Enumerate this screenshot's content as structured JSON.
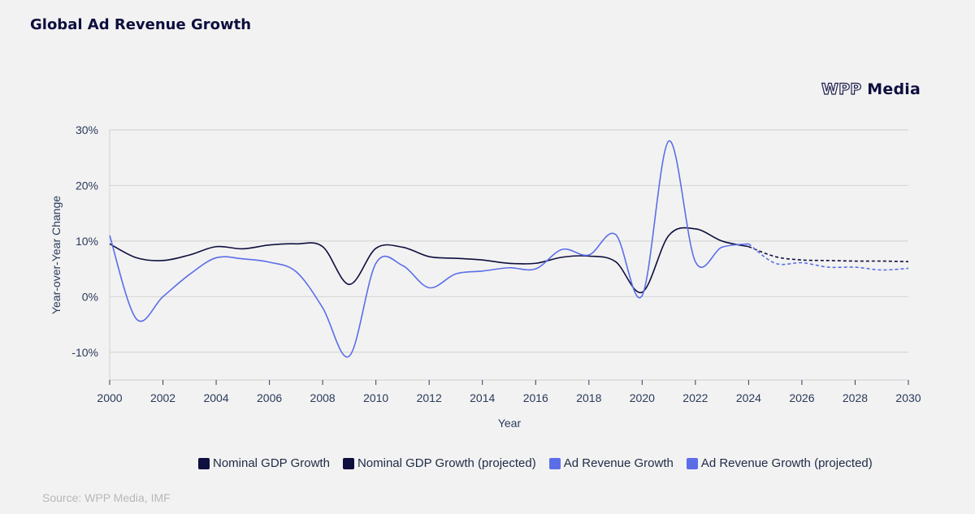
{
  "title": "Global Ad Revenue Growth",
  "logo": {
    "part1": "WPP",
    "part2": "Media"
  },
  "source": "Source: WPP Media, IMF",
  "colors": {
    "gdp": "#0e0e3f",
    "ad": "#5b6ee8",
    "grid": "#d6d6d6"
  },
  "chart_data": {
    "type": "line",
    "title": "Global Ad Revenue Growth",
    "xlabel": "Year",
    "ylabel": "Year-over-Year Change",
    "xlim": [
      2000,
      2030
    ],
    "ylim": [
      -15,
      30
    ],
    "x_ticks": [
      2000,
      2002,
      2004,
      2006,
      2008,
      2010,
      2012,
      2014,
      2016,
      2018,
      2020,
      2022,
      2024,
      2026,
      2028,
      2030
    ],
    "y_ticks": [
      -10,
      0,
      10,
      20,
      30
    ],
    "y_tick_labels": [
      "-10%",
      "0%",
      "10%",
      "20%",
      "30%"
    ],
    "grid": true,
    "legend_position": "bottom",
    "series": [
      {
        "name": "Nominal GDP Growth",
        "color": "#0e0e3f",
        "dashed": false,
        "x": [
          2000,
          2001,
          2002,
          2003,
          2004,
          2005,
          2006,
          2007,
          2008,
          2009,
          2010,
          2011,
          2012,
          2013,
          2014,
          2015,
          2016,
          2017,
          2018,
          2019,
          2020,
          2021,
          2022,
          2023,
          2024
        ],
        "y": [
          9.5,
          7.0,
          6.5,
          7.5,
          9.0,
          8.6,
          9.3,
          9.5,
          9.0,
          2.2,
          8.7,
          8.9,
          7.2,
          6.9,
          6.6,
          6.0,
          6.0,
          7.1,
          7.3,
          6.3,
          0.8,
          11.0,
          12.2,
          10.0,
          9.0
        ]
      },
      {
        "name": "Nominal GDP Growth (projected)",
        "color": "#0e0e3f",
        "dashed": true,
        "x": [
          2024,
          2025,
          2026,
          2027,
          2028,
          2029,
          2030
        ],
        "y": [
          9.0,
          7.2,
          6.6,
          6.5,
          6.4,
          6.4,
          6.3
        ]
      },
      {
        "name": "Ad Revenue Growth",
        "color": "#5b6ee8",
        "dashed": false,
        "x": [
          2000,
          2001,
          2002,
          2003,
          2004,
          2005,
          2006,
          2007,
          2008,
          2009,
          2010,
          2011,
          2012,
          2013,
          2014,
          2015,
          2016,
          2017,
          2018,
          2019,
          2020,
          2021,
          2022,
          2023,
          2024
        ],
        "y": [
          11.0,
          -4.0,
          0.0,
          4.0,
          7.0,
          6.8,
          6.2,
          4.5,
          -2.0,
          -10.7,
          6.0,
          5.6,
          1.6,
          4.1,
          4.6,
          5.2,
          5.0,
          8.5,
          7.5,
          11.2,
          0.2,
          28.0,
          6.3,
          8.9,
          9.5
        ]
      },
      {
        "name": "Ad Revenue Growth (projected)",
        "color": "#5b6ee8",
        "dashed": true,
        "x": [
          2024,
          2025,
          2026,
          2027,
          2028,
          2029,
          2030
        ],
        "y": [
          9.5,
          6.0,
          6.1,
          5.3,
          5.3,
          4.8,
          5.1
        ]
      }
    ]
  }
}
